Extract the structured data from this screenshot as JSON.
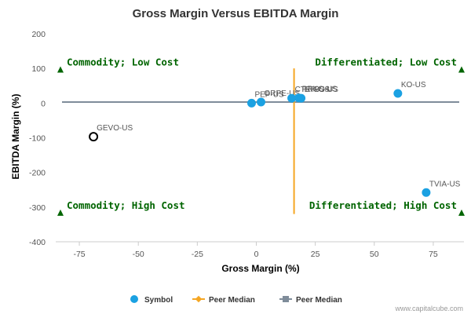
{
  "chart_data": {
    "type": "scatter",
    "title": "Gross Margin Versus EBITDA Margin",
    "xlabel": "Gross Margin (%)",
    "ylabel": "EBITDA Margin (%)",
    "xlim": [
      -85,
      88
    ],
    "ylim": [
      -400,
      200
    ],
    "xticks": [
      -75,
      -50,
      -25,
      0,
      25,
      50,
      75
    ],
    "yticks": [
      200,
      100,
      0,
      -100,
      -200,
      -300,
      -400
    ],
    "points": [
      {
        "label": "GEVO-US",
        "x": -69,
        "y": -97,
        "style": "hollow"
      },
      {
        "label": "PEP-US",
        "x": -2,
        "y": 0,
        "style": "filled"
      },
      {
        "label": "GRPE-US",
        "x": 2,
        "y": 3,
        "style": "filled"
      },
      {
        "label": "CTRK-US",
        "x": 15,
        "y": 14,
        "style": "filled"
      },
      {
        "label": "PRKC-US",
        "x": 18,
        "y": 15,
        "style": "filled"
      },
      {
        "label": "ETBS-US",
        "x": 19,
        "y": 14,
        "style": "filled"
      },
      {
        "label": "KO-US",
        "x": 60,
        "y": 28,
        "style": "filled"
      },
      {
        "label": "TVIA-US",
        "x": 72,
        "y": -258,
        "style": "filled"
      }
    ],
    "peer_median": {
      "x": 16,
      "y": 3,
      "v_range": [
        -320,
        100
      ]
    },
    "quadrants": [
      {
        "label": "Commodity; Low Cost",
        "x": -83,
        "y": 97,
        "position": "top-left"
      },
      {
        "label": "Differentiated; Low Cost",
        "x": 87,
        "y": 97,
        "position": "top-right"
      },
      {
        "label": "Commodity; High Cost",
        "x": -83,
        "y": -316,
        "position": "bottom-left"
      },
      {
        "label": "Differentiated; High Cost",
        "x": 87,
        "y": -316,
        "position": "bottom-right"
      }
    ],
    "legend": [
      {
        "label": "Symbol",
        "marker": "circle"
      },
      {
        "label": "Peer Median",
        "marker": "diamond-line"
      },
      {
        "label": "Peer Median",
        "marker": "square-line"
      }
    ],
    "credit": "www.capitalcube.com",
    "colors": {
      "point": "#1ba1e2",
      "median_vertical": "#f5a623",
      "median_horizontal": "#7f8c9a",
      "quadrant": "#006400",
      "axis": "#cccccc"
    }
  }
}
